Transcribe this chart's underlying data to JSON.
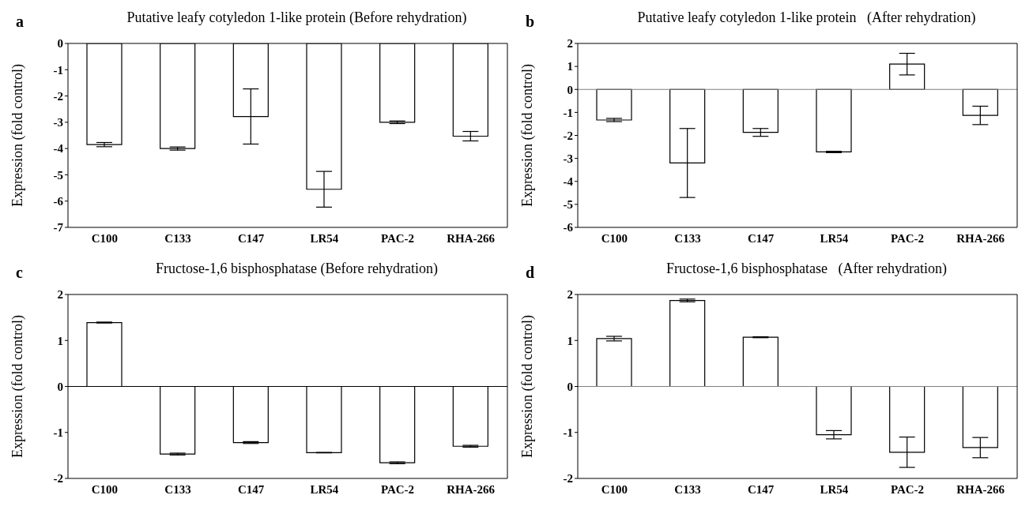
{
  "chart_data": [
    {
      "type": "bar",
      "title": "Putative leafy cotyledon 1-like protein (Before rehydration)",
      "ylabel": "Expression (fold control)",
      "annotations": [
        "a"
      ],
      "categories": [
        "C100",
        "C133",
        "C147",
        "LR54",
        "PAC-2",
        "RHA-266"
      ],
      "values": [
        -3.85,
        -4.0,
        -2.78,
        -5.55,
        -3.0,
        -3.53
      ],
      "errors": [
        0.08,
        0.06,
        1.05,
        0.68,
        0.05,
        0.18
      ],
      "color": "#ffffff",
      "ylim": [
        -7,
        0
      ],
      "yticks": [
        0,
        -1,
        -2,
        -3,
        -4,
        -5,
        -6,
        -7
      ],
      "grid": false,
      "legend": false
    },
    {
      "type": "bar",
      "title": "Putative leafy cotyledon 1-like protein   (After rehydration)",
      "ylabel": "Expression (fold control)",
      "annotations": [
        "b"
      ],
      "categories": [
        "C100",
        "C133",
        "C147",
        "LR54",
        "PAC-2",
        "RHA-266"
      ],
      "values": [
        -1.33,
        -3.2,
        -1.87,
        -2.72,
        1.1,
        -1.13
      ],
      "errors": [
        0.07,
        1.5,
        0.17,
        0.03,
        0.47,
        0.4
      ],
      "color": "#ffffff",
      "ylim": [
        -6,
        2
      ],
      "yticks": [
        2,
        1,
        0,
        -1,
        -2,
        -3,
        -4,
        -5,
        -6
      ],
      "ref_lines": [
        {
          "axis": "y",
          "value": 0,
          "color": "#808080"
        }
      ],
      "grid": false,
      "legend": false
    },
    {
      "type": "bar",
      "title": "Fructose-1,6 bisphosphatase (Before rehydration)",
      "ylabel": "Expression (fold control)",
      "annotations": [
        "c"
      ],
      "categories": [
        "C100",
        "C133",
        "C147",
        "LR54",
        "PAC-2",
        "RHA-266"
      ],
      "values": [
        1.39,
        -1.47,
        -1.22,
        -1.44,
        -1.66,
        -1.3
      ],
      "errors": [
        0.01,
        0.02,
        0.02,
        0.005,
        0.02,
        0.02
      ],
      "color": "#ffffff",
      "ylim": [
        -2,
        2
      ],
      "yticks": [
        2,
        1,
        0,
        -1,
        -2
      ],
      "ref_lines": [
        {
          "axis": "y",
          "value": 0,
          "color": "#000000"
        }
      ],
      "grid": false,
      "legend": false
    },
    {
      "type": "bar",
      "title": "Fructose-1,6 bisphosphatase   (After rehydration)",
      "ylabel": "Expression (fold control)",
      "annotations": [
        "d"
      ],
      "categories": [
        "C100",
        "C133",
        "C147",
        "LR54",
        "PAC-2",
        "RHA-266"
      ],
      "values": [
        1.04,
        1.87,
        1.07,
        -1.05,
        -1.43,
        -1.33
      ],
      "errors": [
        0.05,
        0.03,
        0.01,
        0.09,
        0.33,
        0.22
      ],
      "color": "#ffffff",
      "ylim": [
        -2,
        2
      ],
      "yticks": [
        2,
        1,
        0,
        -1,
        -2
      ],
      "ref_lines": [
        {
          "axis": "y",
          "value": 0,
          "color": "#808080"
        }
      ],
      "grid": false,
      "legend": false
    }
  ]
}
